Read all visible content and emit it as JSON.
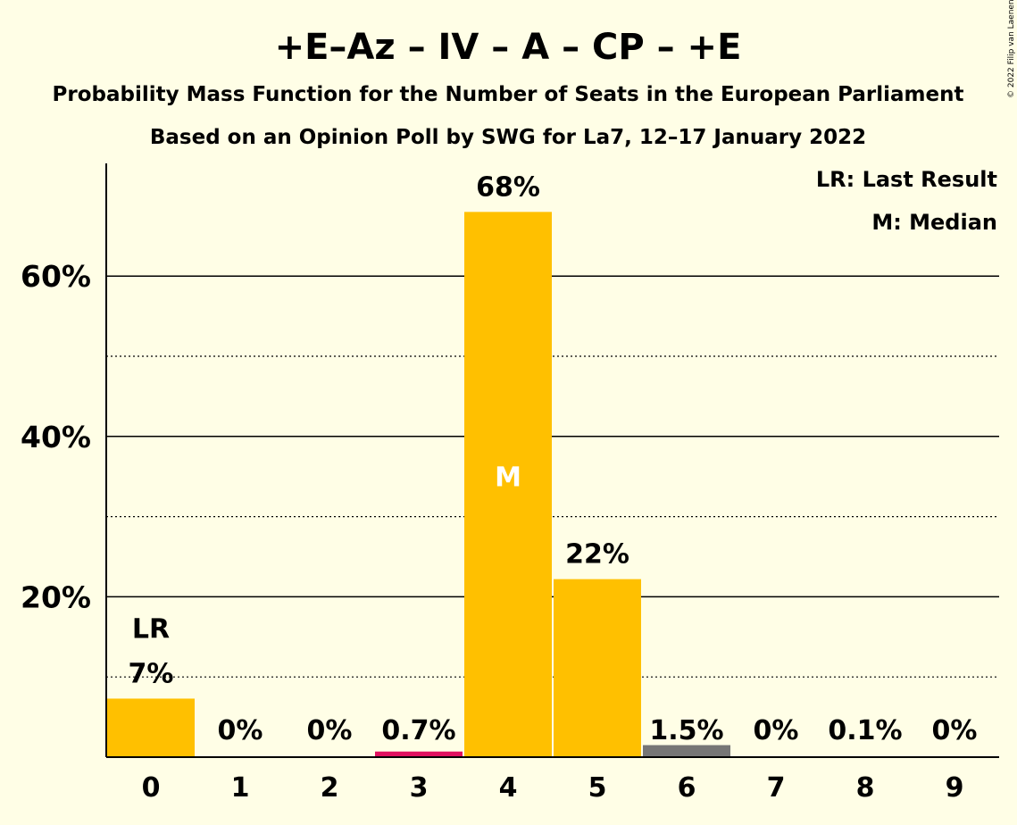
{
  "chart_data": {
    "type": "bar",
    "title": "+E–Az – IV – A – CP – +E",
    "subtitle": "Probability Mass Function for the Number of Seats in the European Parliament",
    "subtitle2": "Based on an Opinion Poll by SWG for La7, 12–17 January 2022",
    "copyright": "© 2022 Filip van Laenen",
    "categories": [
      "0",
      "1",
      "2",
      "3",
      "4",
      "5",
      "6",
      "7",
      "8",
      "9"
    ],
    "values": [
      7.3,
      0,
      0,
      0.7,
      68,
      22.2,
      1.5,
      0,
      0.1,
      0
    ],
    "value_labels": [
      "7%",
      "0%",
      "0%",
      "0.7%",
      "68%",
      "22%",
      "1.5%",
      "0%",
      "0.1%",
      "0%"
    ],
    "bar_colors": [
      "#FFC000",
      "#FFC000",
      "#FFC000",
      "#E0115F",
      "#FFC000",
      "#FFC000",
      "#767676",
      "#FFC000",
      "#FFC000",
      "#FFC000"
    ],
    "ylim": [
      0,
      74
    ],
    "yticks": [
      20,
      40,
      60
    ],
    "ytick_labels": [
      "20%",
      "40%",
      "60%"
    ],
    "minor_gridlines": [
      10,
      30,
      50
    ],
    "last_result_index": 0,
    "last_result_marker": "LR",
    "median_index": 4,
    "median_marker": "M",
    "legend": [
      "LR: Last Result",
      "M: Median"
    ],
    "legend_position": "top-right",
    "grid": true
  }
}
